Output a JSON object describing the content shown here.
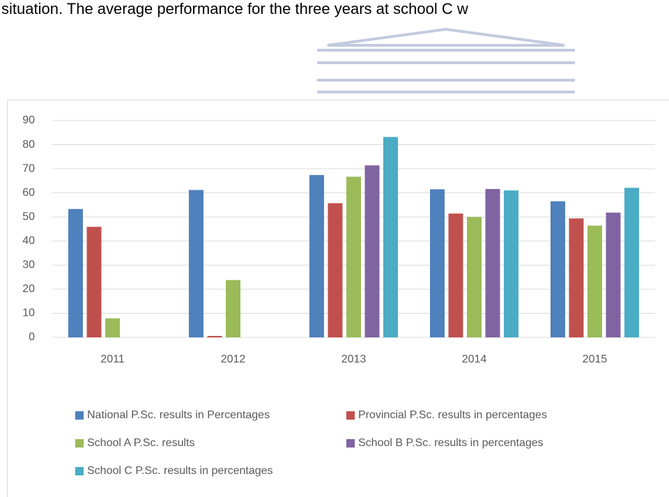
{
  "document_text": "situation. The average performance for the three years at school C w",
  "chart_data": {
    "type": "bar",
    "categories": [
      "2011",
      "2012",
      "2013",
      "2014",
      "2015"
    ],
    "series": [
      {
        "name": "National P.Sc. results in Percentages",
        "color": "#4f81bd",
        "values": [
          53.3,
          61.2,
          67.4,
          61.5,
          56.5
        ]
      },
      {
        "name": "Provincial P.Sc. results in percentages",
        "color": "#c0504d",
        "values": [
          45.9,
          0.6,
          55.7,
          51.4,
          49.4
        ]
      },
      {
        "name": "School A P.Sc. results",
        "color": "#9bbb59",
        "values": [
          7.9,
          23.8,
          66.7,
          50,
          46.4
        ]
      },
      {
        "name": "School B P.Sc. results in percentages",
        "color": "#8064a2",
        "values": [
          null,
          null,
          71.4,
          61.6,
          51.8
        ]
      },
      {
        "name": "School C P.Sc. results in percentages",
        "color": "#4bacc6",
        "values": [
          null,
          null,
          83.2,
          61,
          62.1
        ]
      }
    ],
    "ylim": [
      0,
      90
    ],
    "yticks": [
      0,
      10,
      20,
      30,
      40,
      50,
      60,
      70,
      80,
      90
    ],
    "grid": true,
    "legend": "bottom"
  }
}
